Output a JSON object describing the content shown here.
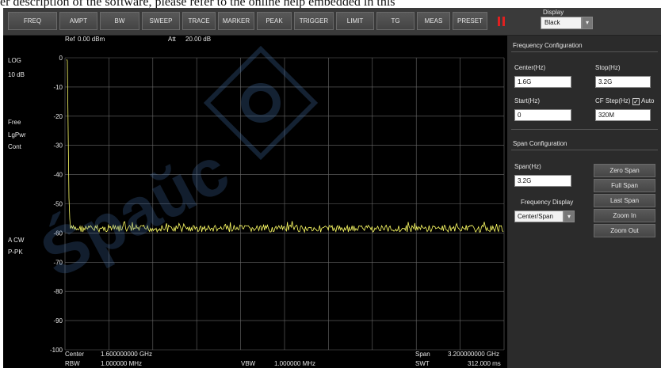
{
  "document": {
    "caption_line": "er description of the software, please refer to the online help embedded in this"
  },
  "toolbar": {
    "buttons": [
      "FREQ",
      "AMPT",
      "BW",
      "SWEEP",
      "TRACE",
      "MARKER",
      "PEAK",
      "TRIGGER",
      "LIMIT",
      "TG",
      "MEAS",
      "PRESET"
    ],
    "pause_icon": "pause-icon",
    "pause_color": "#e02020",
    "display_label": "Display",
    "display_value": "Black"
  },
  "plot": {
    "ref_label": "Ref",
    "ref_value": "0.00 dBm",
    "att_label": "Att",
    "att_value": "20.00 dB",
    "scale_mode": "LOG",
    "scale_div": "10 dB",
    "trigger_mode": "Free",
    "detector": "LgPwr",
    "sweep_mode": "Cont",
    "trace_mode": "A CW",
    "trace_detector": "P-PK",
    "y_ticks": [
      "0",
      "-10",
      "-20",
      "-30",
      "-40",
      "-50",
      "-60",
      "-70",
      "-80",
      "-90",
      "-100"
    ],
    "trace_color": "#ffff66",
    "footer": {
      "center_label": "Center",
      "center_value": "1.600000000 GHz",
      "span_label": "Span",
      "span_value": "3.200000000 GHz",
      "rbw_label": "RBW",
      "rbw_value": "1.000000 MHz",
      "vbw_label": "VBW",
      "vbw_value": "1.000000 MHz",
      "swt_label": "SWT",
      "swt_value": "312.000 ms"
    }
  },
  "freq_config": {
    "title": "Frequency Configuration",
    "center_label": "Center(Hz)",
    "center_value": "1.6G",
    "stop_label": "Stop(Hz)",
    "stop_value": "3.2G",
    "start_label": "Start(Hz)",
    "start_value": "0",
    "cf_step_label": "CF Step(Hz)",
    "auto_label": "Auto",
    "auto_checked": "✓",
    "cf_step_value": "320M"
  },
  "span_config": {
    "title": "Span Configuration",
    "span_label": "Span(Hz)",
    "span_value": "3.2G",
    "freq_display_label": "Frequency Display",
    "freq_display_value": "Center/Span",
    "buttons": [
      "Zero Span",
      "Full Span",
      "Last Span",
      "Zoom In",
      "Zoom Out"
    ]
  },
  "watermark": {
    "text": "Śpaŭc",
    "icon": "gear-logo-icon",
    "color": "#4a7ab8"
  }
}
